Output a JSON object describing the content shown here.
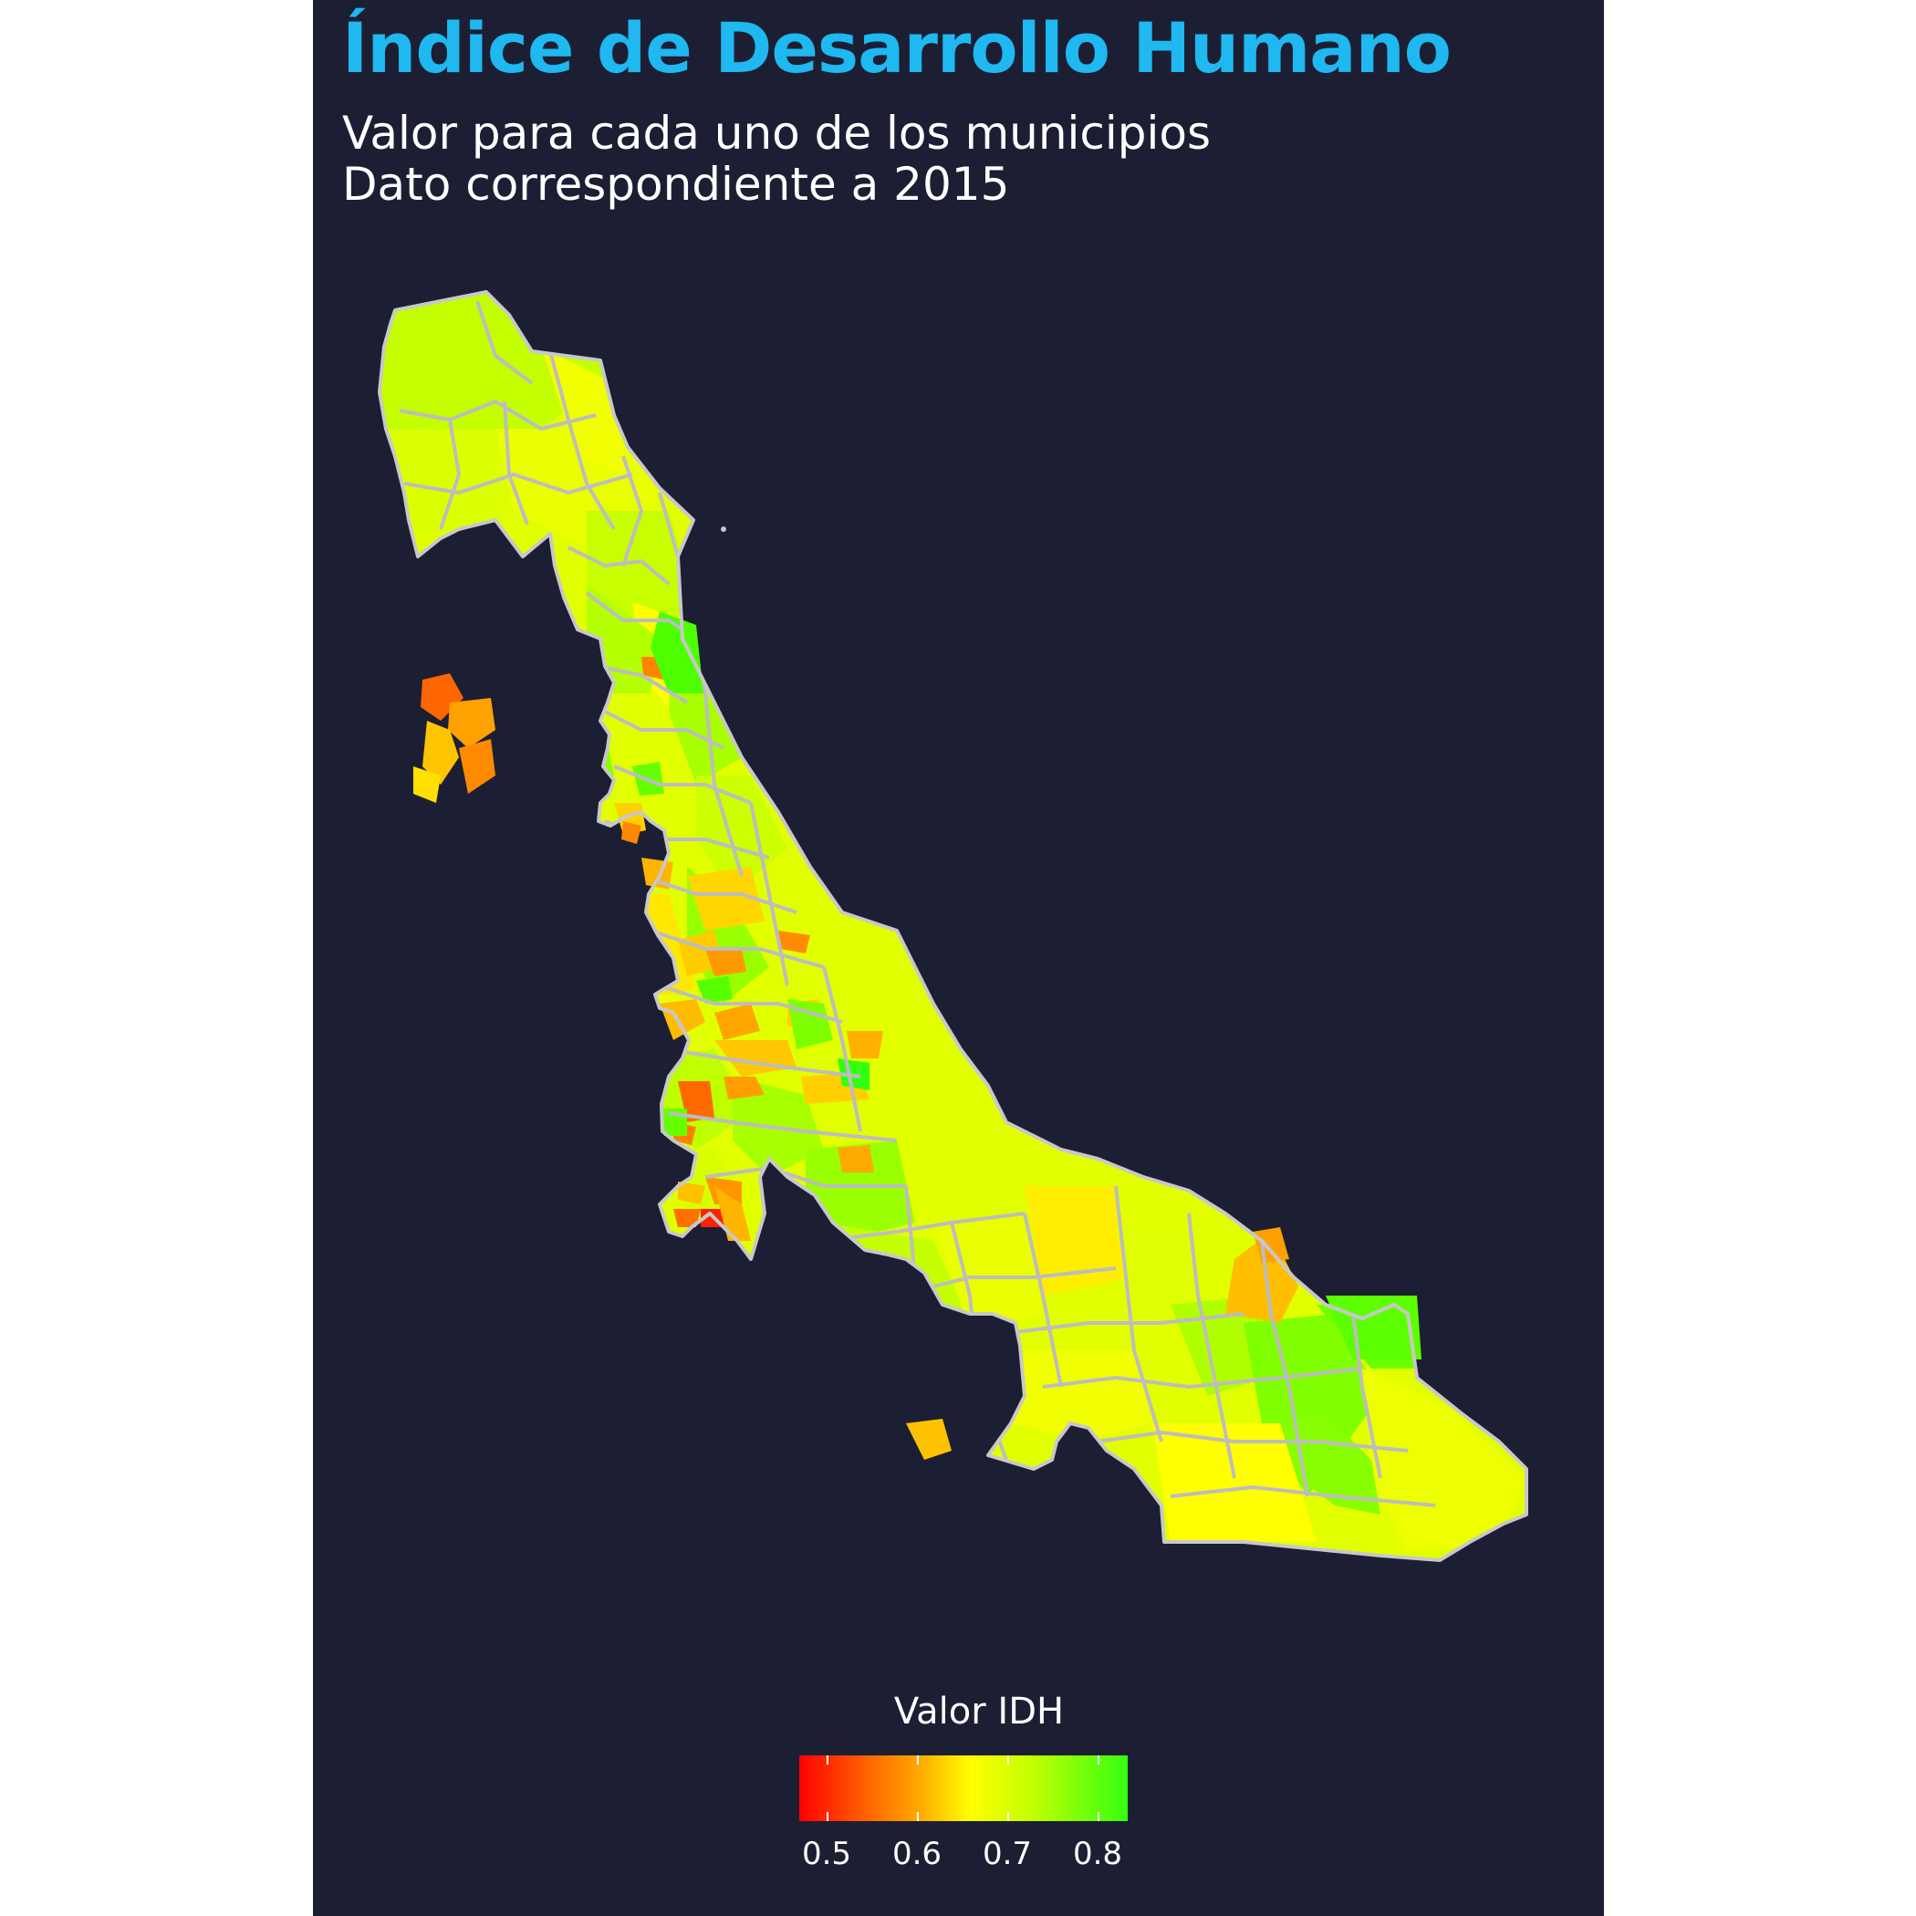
{
  "header": {
    "title": "Índice de Desarrollo Humano",
    "subtitle_line1": "Valor para cada uno de los municipios",
    "subtitle_line2": "Dato correspondiente a 2015"
  },
  "legend": {
    "title": "Valor IDH",
    "labels": [
      "0.5",
      "0.6",
      "0.7",
      "0.8"
    ],
    "range": [
      0.46,
      0.84
    ],
    "colors": [
      "#ff0000",
      "#ff6a00",
      "#ffb000",
      "#ffff00",
      "#c6ff00",
      "#33ff11"
    ]
  },
  "map": {
    "background": "#1c1f33",
    "border_color": "#bdbdbd"
  }
}
